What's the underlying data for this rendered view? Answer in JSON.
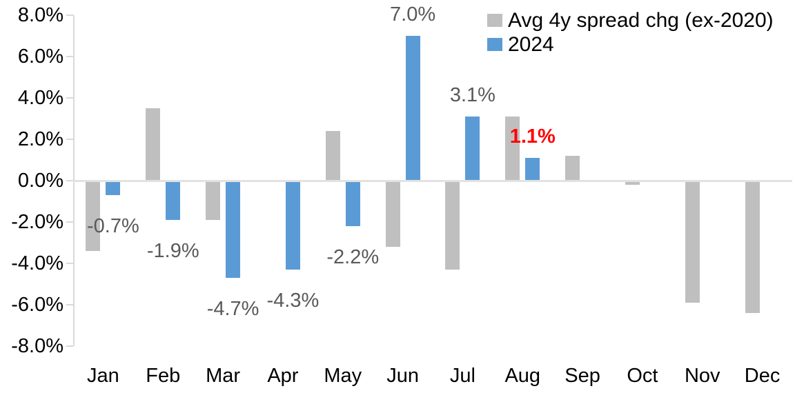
{
  "chart_data": {
    "type": "bar",
    "categories": [
      "Jan",
      "Feb",
      "Mar",
      "Apr",
      "May",
      "Jun",
      "Jul",
      "Aug",
      "Sep",
      "Oct",
      "Nov",
      "Dec"
    ],
    "series": [
      {
        "name": "Avg 4y spread chg (ex-2020)",
        "key": "avg4y",
        "color": "#bfbfbf",
        "values": [
          -3.4,
          3.5,
          -1.9,
          0.0,
          2.4,
          -3.2,
          -4.3,
          3.1,
          1.2,
          -0.2,
          -5.9,
          -6.4
        ]
      },
      {
        "name": "2024",
        "key": "2024",
        "color": "#5b9bd5",
        "values": [
          -0.7,
          -1.9,
          -4.7,
          -4.3,
          -2.2,
          7.0,
          3.1,
          1.1,
          null,
          null,
          null,
          null
        ],
        "point_labels": [
          {
            "text": "-0.7%"
          },
          {
            "text": "-1.9%"
          },
          {
            "text": "-4.7%"
          },
          {
            "text": "-4.3%"
          },
          {
            "text": "-2.2%"
          },
          {
            "text": "7.0%"
          },
          {
            "text": "3.1%"
          },
          {
            "text": "1.1%",
            "color": "#ff0000",
            "bold": true
          },
          null,
          null,
          null,
          null
        ]
      }
    ],
    "y_ticks": [
      {
        "value": 8,
        "label": "8.0%"
      },
      {
        "value": 6,
        "label": "6.0%"
      },
      {
        "value": 4,
        "label": "4.0%"
      },
      {
        "value": 2,
        "label": "2.0%"
      },
      {
        "value": 0,
        "label": "0.0%"
      },
      {
        "value": -2,
        "label": "-2.0%"
      },
      {
        "value": -4,
        "label": "-4.0%"
      },
      {
        "value": -6,
        "label": "-6.0%"
      },
      {
        "value": -8,
        "label": "-8.0%"
      }
    ],
    "ylim": [
      -8,
      8
    ],
    "title": "",
    "xlabel": "",
    "ylabel": "",
    "grid": false,
    "legend_position": "top-right",
    "default_label_color": "#595959",
    "axis_color": "#d9d9d9"
  }
}
